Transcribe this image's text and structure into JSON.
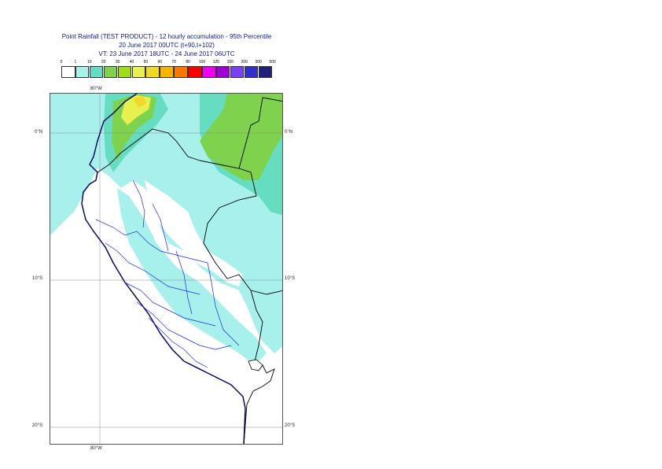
{
  "title": "Point Rainfall (TEST PRODUCT) - 12 hourly accumulation - 95th Percentile",
  "subtitle": "20 June 2017 00UTC (t+90,t+102)",
  "valid_time": "VT: 23 June 2017 18UTC - 24 June 2017 06UTC",
  "legend": {
    "labels": [
      "0",
      "1",
      "10",
      "20",
      "30",
      "40",
      "50",
      "60",
      "70",
      "80",
      "100",
      "125",
      "150",
      "200",
      "300",
      "500"
    ],
    "colors": [
      "#ffffff",
      "#a8f0ec",
      "#66dcc0",
      "#7ed24e",
      "#a0dc18",
      "#e8f050",
      "#f0d828",
      "#f8b400",
      "#f87800",
      "#f80000",
      "#f000f0",
      "#a000d8",
      "#7840f0",
      "#3030c8",
      "#20207c",
      "#0c0c44"
    ]
  },
  "axes": {
    "lon_top": "80°W",
    "lon_bottom": "80°W",
    "lat_left": [
      "0°N",
      "10°S",
      "20°S"
    ],
    "lat_right": [
      "0°N",
      "10°S",
      "20°S"
    ]
  }
}
